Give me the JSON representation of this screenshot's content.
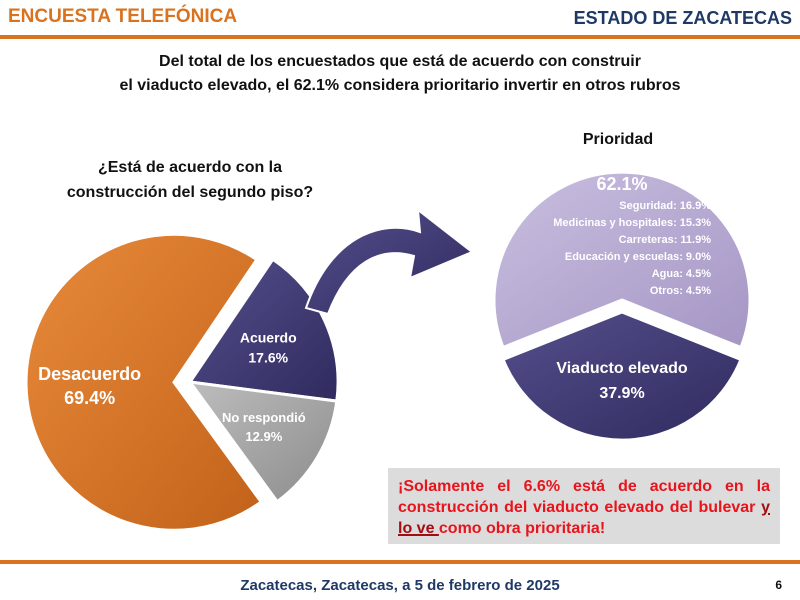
{
  "header": {
    "left": "ENCUESTA TELEFÓNICA",
    "right": "ESTADO DE ZACATECAS"
  },
  "headline": {
    "line1": "Del total de los encuestados que está de acuerdo con construir",
    "line2": "el viaducto elevado, el 62.1% considera prioritario invertir en otros rubros"
  },
  "question": {
    "line1": "¿Está de acuerdo con la",
    "line2": "construcción del segundo piso?"
  },
  "priority_title": "Prioridad",
  "callout": {
    "part1": "¡Solamente el 6.6% está de acuerdo en la construcción del viaducto elevado del bulevar ",
    "underlined": "y lo ve ",
    "part2": "como obra prioritaria!"
  },
  "footer": "Zacatecas, Zacatecas, a 5 de febrero de 2025",
  "page_number": "6",
  "colors": {
    "orange": "#d9731f",
    "navy": "#3f3a76",
    "lavender": "#b6a9d0",
    "gray": "#a8a8a8",
    "red": "#e8141c"
  },
  "chart_data": [
    {
      "type": "pie",
      "slices": [
        {
          "label": "Desacuerdo",
          "value": 69.4,
          "value_label": "69.4%",
          "color": "#d9731f"
        },
        {
          "label": "Acuerdo",
          "value": 17.6,
          "value_label": "17.6%",
          "color": "#3f3a76"
        },
        {
          "label": "No respondió",
          "value": 12.9,
          "value_label": "12.9%",
          "color": "#a8a8a8"
        }
      ]
    },
    {
      "type": "pie",
      "title": "Prioridad",
      "slices": [
        {
          "label": "",
          "value": 62.1,
          "value_label": "62.1%",
          "color": "#b6a9d0"
        },
        {
          "label": "Viaducto elevado",
          "value": 37.9,
          "value_label": "37.9%",
          "color": "#3f3a76"
        }
      ],
      "breakdown": [
        {
          "label": "Seguridad:",
          "value": 16.9,
          "value_label": "16.9%"
        },
        {
          "label": "Medicinas y hospitales:",
          "value": 15.3,
          "value_label": "15.3%"
        },
        {
          "label": "Carreteras:",
          "value": 11.9,
          "value_label": "11.9%"
        },
        {
          "label": "Educación y escuelas:",
          "value": 9.0,
          "value_label": "9.0%"
        },
        {
          "label": "Agua:",
          "value": 4.5,
          "value_label": "4.5%"
        },
        {
          "label": "Otros:",
          "value": 4.5,
          "value_label": "4.5%"
        }
      ]
    }
  ]
}
